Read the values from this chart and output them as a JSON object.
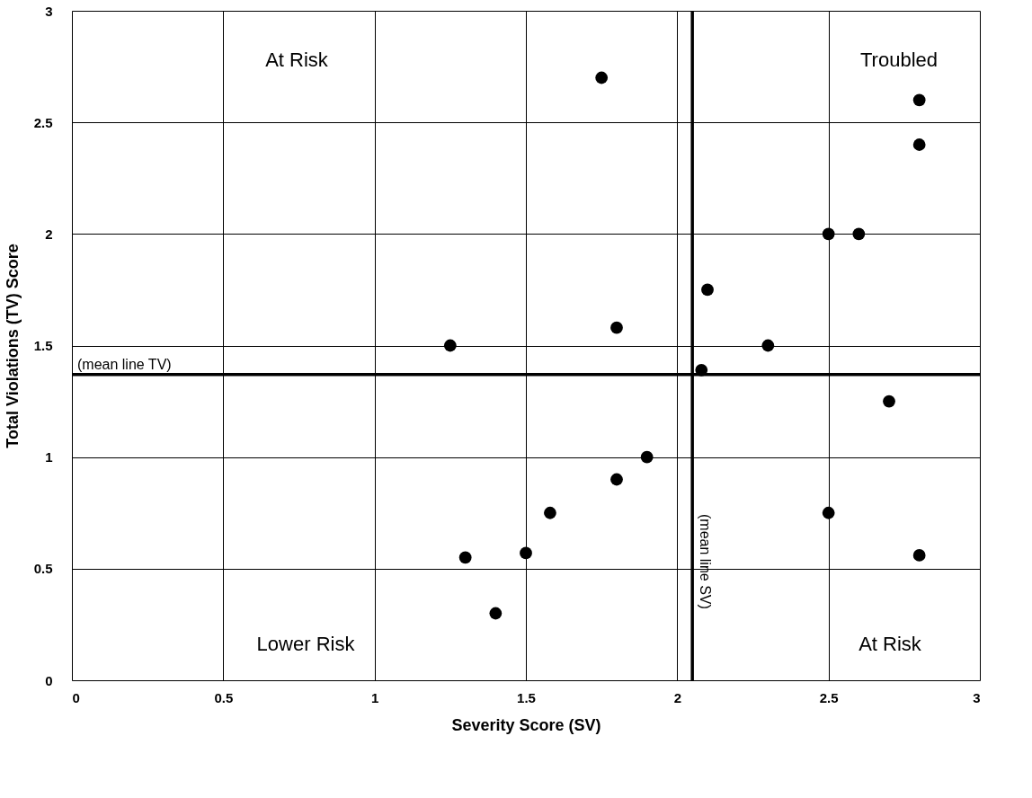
{
  "chart_data": {
    "type": "scatter",
    "xlabel": "Severity Score (SV)",
    "ylabel": "Total Violations (TV) Score",
    "x": [
      1.25,
      1.3,
      1.4,
      1.5,
      1.58,
      1.75,
      1.8,
      1.8,
      1.9,
      2.08,
      2.1,
      2.3,
      2.5,
      2.6,
      2.5,
      2.7,
      2.8,
      2.8,
      2.8
    ],
    "series": [
      {
        "color": "#000000",
        "values": [
          1.5,
          0.55,
          0.3,
          0.57,
          0.75,
          2.7,
          1.58,
          0.9,
          1.0,
          1.39,
          1.75,
          1.5,
          2.0,
          2.0,
          0.75,
          1.25,
          2.6,
          2.4,
          0.56
        ]
      }
    ],
    "xlim": [
      0,
      3
    ],
    "ylim": [
      0,
      3
    ],
    "xticks": [
      0,
      0.5,
      1,
      1.5,
      2,
      2.5,
      3
    ],
    "yticks": [
      0,
      0.5,
      1,
      1.5,
      2,
      2.5,
      3
    ],
    "grid": true,
    "marker": "circle",
    "ref_lines": [
      {
        "axis": "y",
        "value": 1.37,
        "label": "(mean line TV)",
        "color": "#000000"
      },
      {
        "axis": "x",
        "value": 2.05,
        "label": "(mean line SV)",
        "color": "#000000"
      }
    ],
    "annotations": [
      "At Risk",
      "Troubled",
      "Lower Risk",
      "At Risk"
    ]
  }
}
